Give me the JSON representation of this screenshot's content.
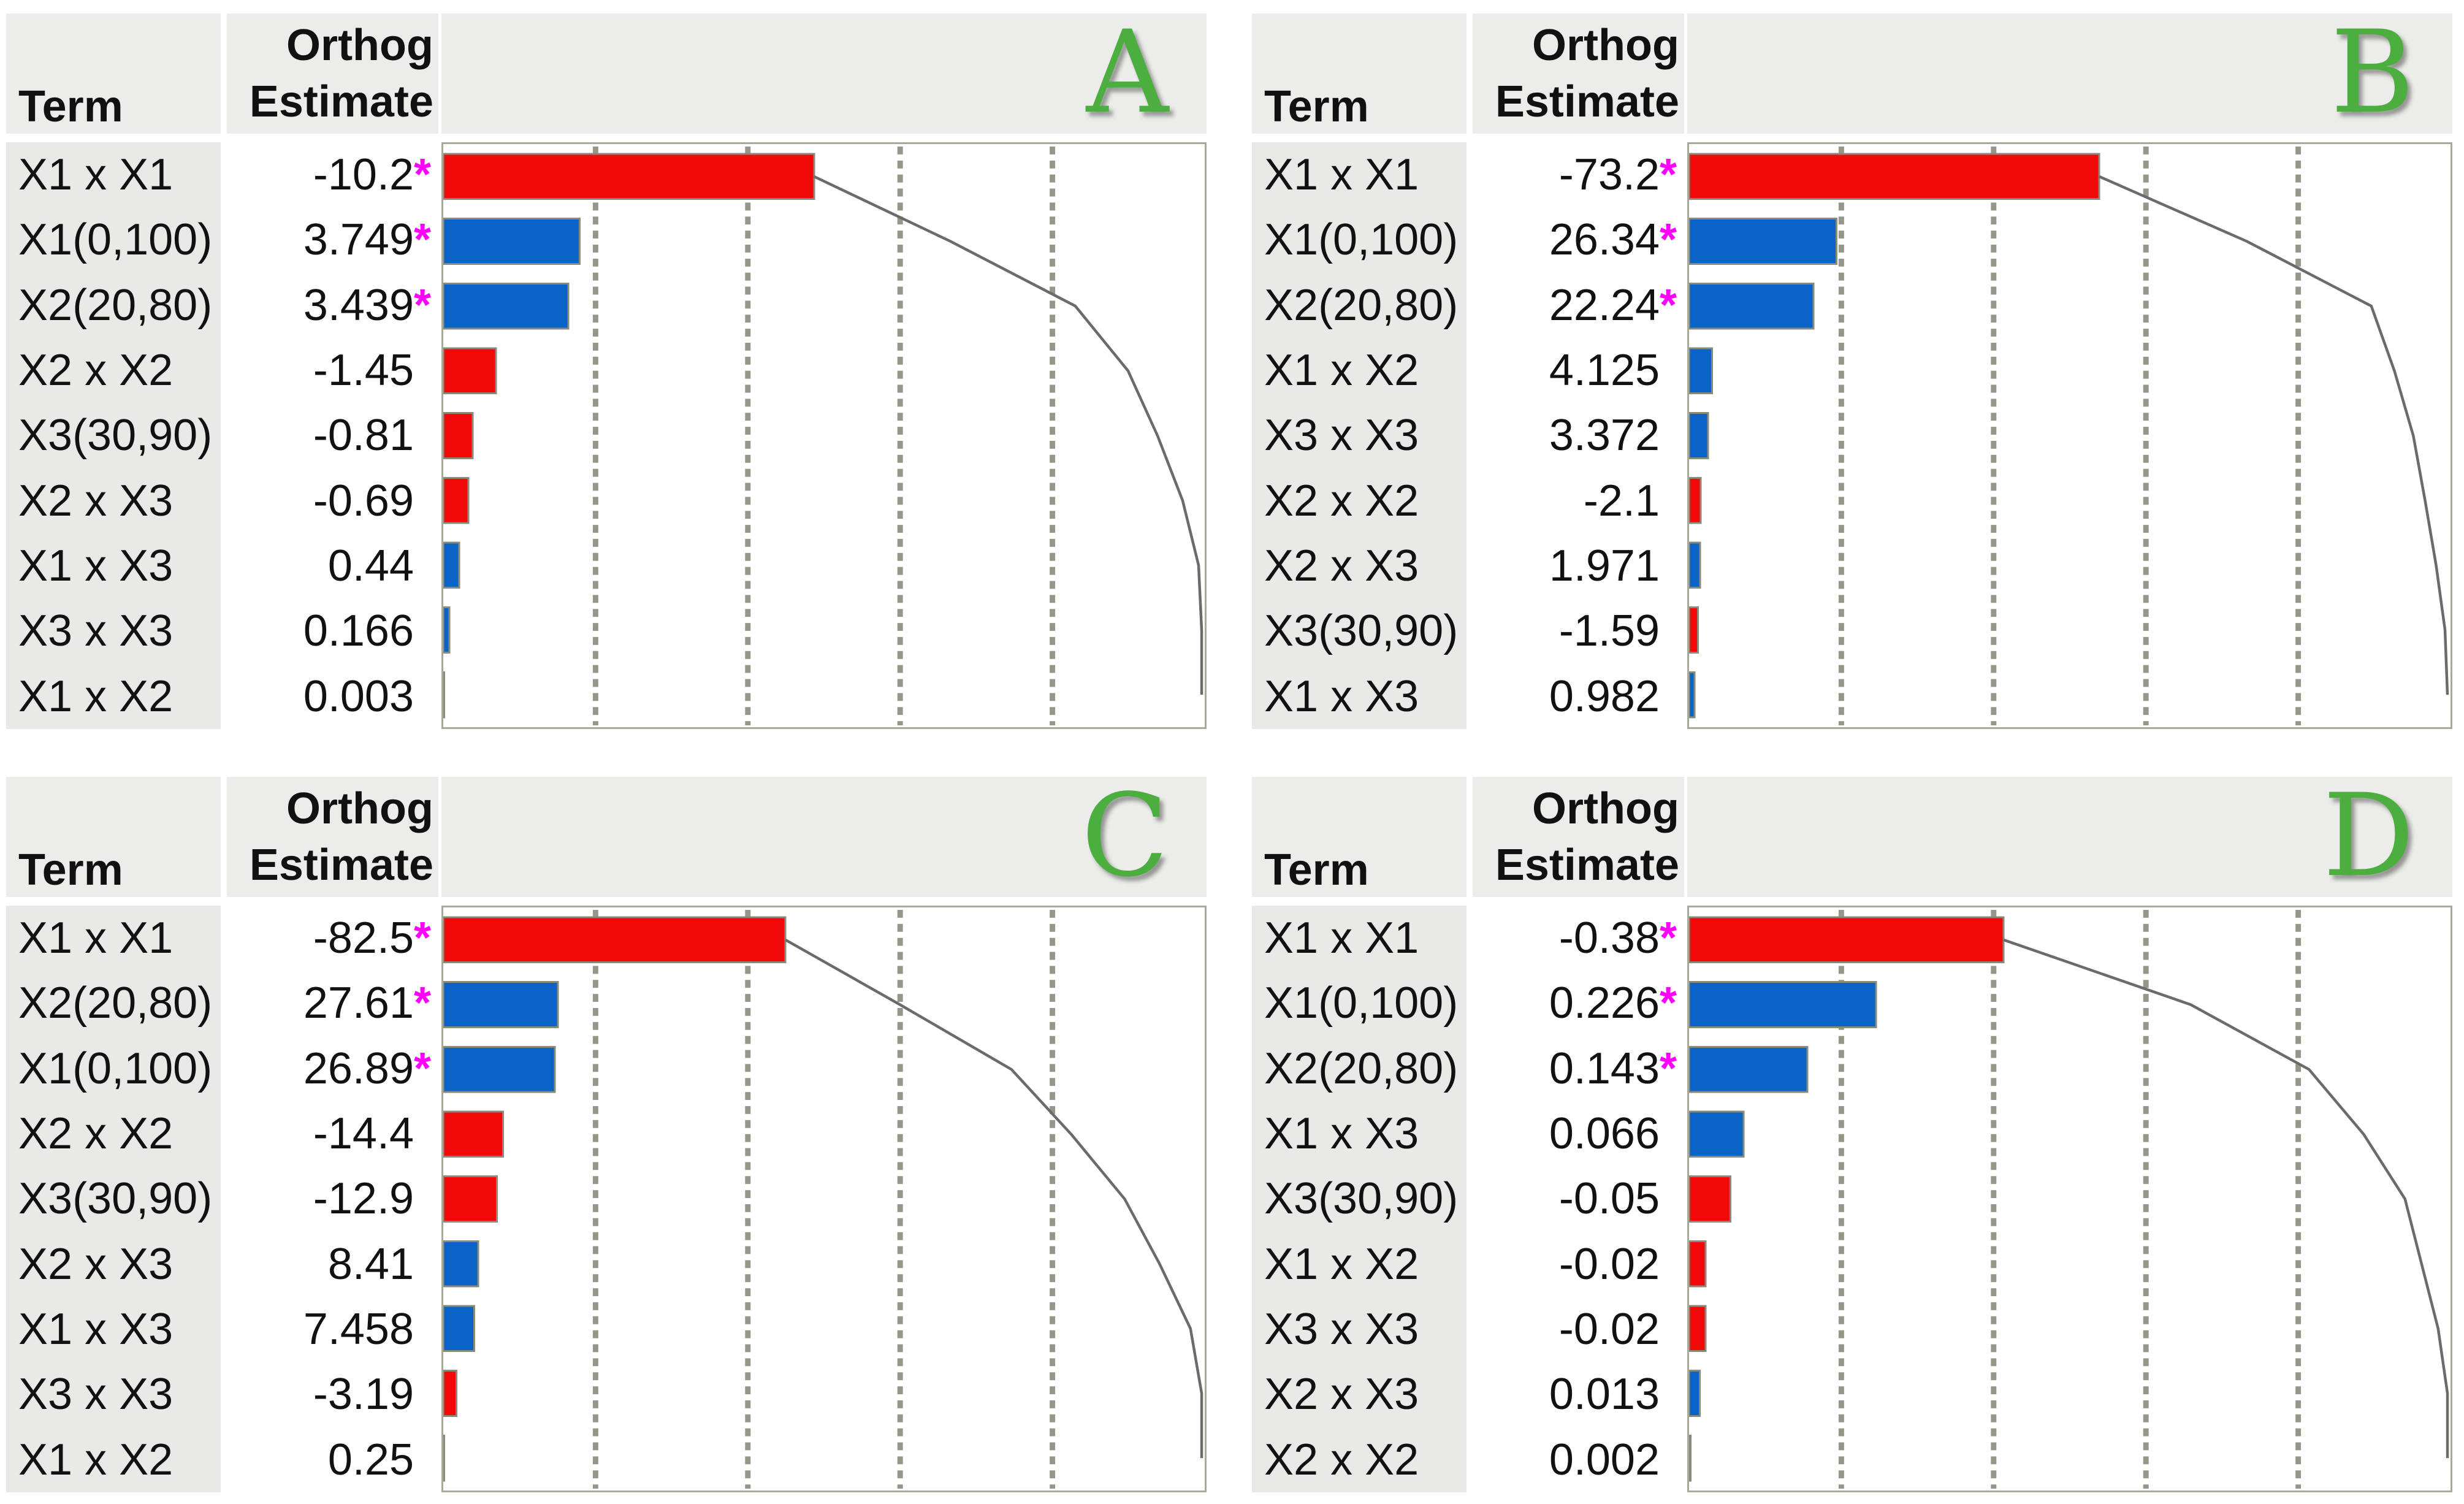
{
  "headers": {
    "term": "Term",
    "orthog_line1": "Orthog",
    "orthog_line2": "Estimate"
  },
  "star_symbol": "*",
  "colors": {
    "positive_bar": "#0A64C8",
    "negative_bar": "#F20A0A",
    "bar_border": "#8A8A7A",
    "gridline": "#96968A",
    "curve": "#6B6B6B",
    "panel_letter": "#4BAE3F",
    "star": "#FF00FF",
    "header_bg": "#ECECEA",
    "term_column_bg": "#E9E9E7",
    "plot_border": "#A9A99B"
  },
  "chart_data": [
    {
      "type": "bar",
      "label": "A",
      "orientation": "horizontal",
      "bar_length_rule": "abs(estimate)/sum(abs(estimates))",
      "curve": "cumulative-fraction",
      "gridlines": [
        0.2,
        0.4,
        0.6,
        0.8
      ],
      "xlim": [
        0,
        1
      ],
      "terms": [
        "X1 x X1",
        "X1(0,100)",
        "X2(20,80)",
        "X2 x X2",
        "X3(30,90)",
        "X2 x X3",
        "X1 x X3",
        "X3 x X3",
        "X1 x X2"
      ],
      "estimates": [
        -10.2,
        3.749,
        3.439,
        -1.45,
        -0.81,
        -0.69,
        0.44,
        0.166,
        0.003
      ],
      "estimate_labels": [
        "-10.2",
        "3.749",
        "3.439",
        "-1.45",
        "-0.81",
        "-0.69",
        "0.44",
        "0.166",
        "0.003"
      ],
      "starred": [
        true,
        true,
        true,
        false,
        false,
        false,
        false,
        false,
        false
      ]
    },
    {
      "type": "bar",
      "label": "B",
      "orientation": "horizontal",
      "bar_length_rule": "abs(estimate)/sum(abs(estimates))",
      "curve": "cumulative-fraction",
      "gridlines": [
        0.2,
        0.4,
        0.6,
        0.8
      ],
      "xlim": [
        0,
        1
      ],
      "terms": [
        "X1 x X1",
        "X1(0,100)",
        "X2(20,80)",
        "X1 x X2",
        "X3 x X3",
        "X2 x X2",
        "X2 x X3",
        "X3(30,90)",
        "X1 x X3"
      ],
      "estimates": [
        -73.2,
        26.34,
        22.24,
        4.125,
        3.372,
        -2.1,
        1.971,
        -1.59,
        0.982
      ],
      "estimate_labels": [
        "-73.2",
        "26.34",
        "22.24",
        "4.125",
        "3.372",
        "-2.1",
        "1.971",
        "-1.59",
        "0.982"
      ],
      "starred": [
        true,
        true,
        true,
        false,
        false,
        false,
        false,
        false,
        false
      ]
    },
    {
      "type": "bar",
      "label": "C",
      "orientation": "horizontal",
      "bar_length_rule": "abs(estimate)/sum(abs(estimates))",
      "curve": "cumulative-fraction",
      "gridlines": [
        0.2,
        0.4,
        0.6,
        0.8
      ],
      "xlim": [
        0,
        1
      ],
      "terms": [
        "X1 x X1",
        "X2(20,80)",
        "X1(0,100)",
        "X2 x X2",
        "X3(30,90)",
        "X2 x X3",
        "X1 x X3",
        "X3 x X3",
        "X1 x X2"
      ],
      "estimates": [
        -82.5,
        27.61,
        26.89,
        -14.4,
        -12.9,
        8.41,
        7.458,
        -3.19,
        0.25
      ],
      "estimate_labels": [
        "-82.5",
        "27.61",
        "26.89",
        "-14.4",
        "-12.9",
        "8.41",
        "7.458",
        "-3.19",
        "0.25"
      ],
      "starred": [
        true,
        true,
        true,
        false,
        false,
        false,
        false,
        false,
        false
      ]
    },
    {
      "type": "bar",
      "label": "D",
      "orientation": "horizontal",
      "bar_length_rule": "abs(estimate)/sum(abs(estimates))",
      "curve": "cumulative-fraction",
      "gridlines": [
        0.2,
        0.4,
        0.6,
        0.8
      ],
      "xlim": [
        0,
        1
      ],
      "terms": [
        "X1 x X1",
        "X1(0,100)",
        "X2(20,80)",
        "X1 x X3",
        "X3(30,90)",
        "X1 x X2",
        "X3 x X3",
        "X2 x X3",
        "X2 x X2"
      ],
      "estimates": [
        -0.38,
        0.226,
        0.143,
        0.066,
        -0.05,
        -0.02,
        -0.02,
        0.013,
        0.002
      ],
      "estimate_labels": [
        "-0.38",
        "0.226",
        "0.143",
        "0.066",
        "-0.05",
        "-0.02",
        "-0.02",
        "0.013",
        "0.002"
      ],
      "starred": [
        true,
        true,
        true,
        false,
        false,
        false,
        false,
        false,
        false
      ]
    }
  ]
}
